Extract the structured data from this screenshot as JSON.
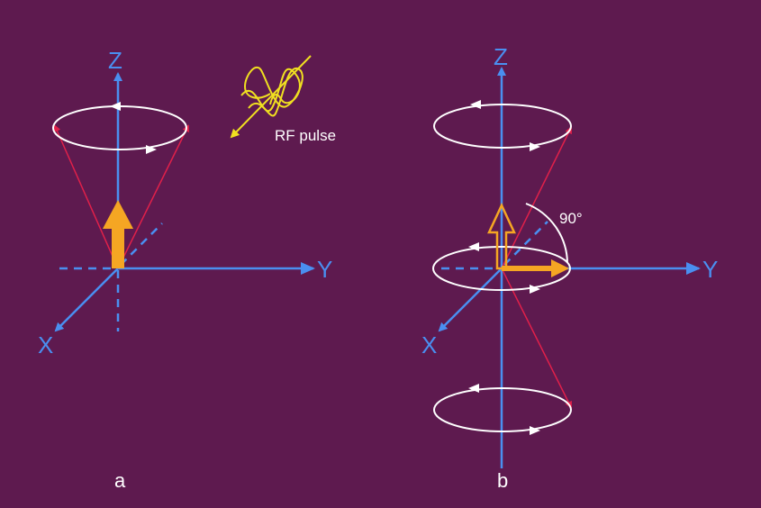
{
  "panel_a": {
    "label": "a",
    "axis_z": "Z",
    "axis_y": "Y",
    "axis_x": "X",
    "rf_label": "RF pulse"
  },
  "panel_b": {
    "label": "b",
    "axis_z": "Z",
    "axis_y": "Y",
    "axis_x": "X",
    "angle_label": "90°"
  },
  "colors": {
    "background": "#5e1a4f",
    "axis": "#4a8ff0",
    "magnetization": "#f5a623",
    "cone_line": "#e0204a",
    "precession": "#ffffff",
    "rf_wave": "#f0e020"
  }
}
